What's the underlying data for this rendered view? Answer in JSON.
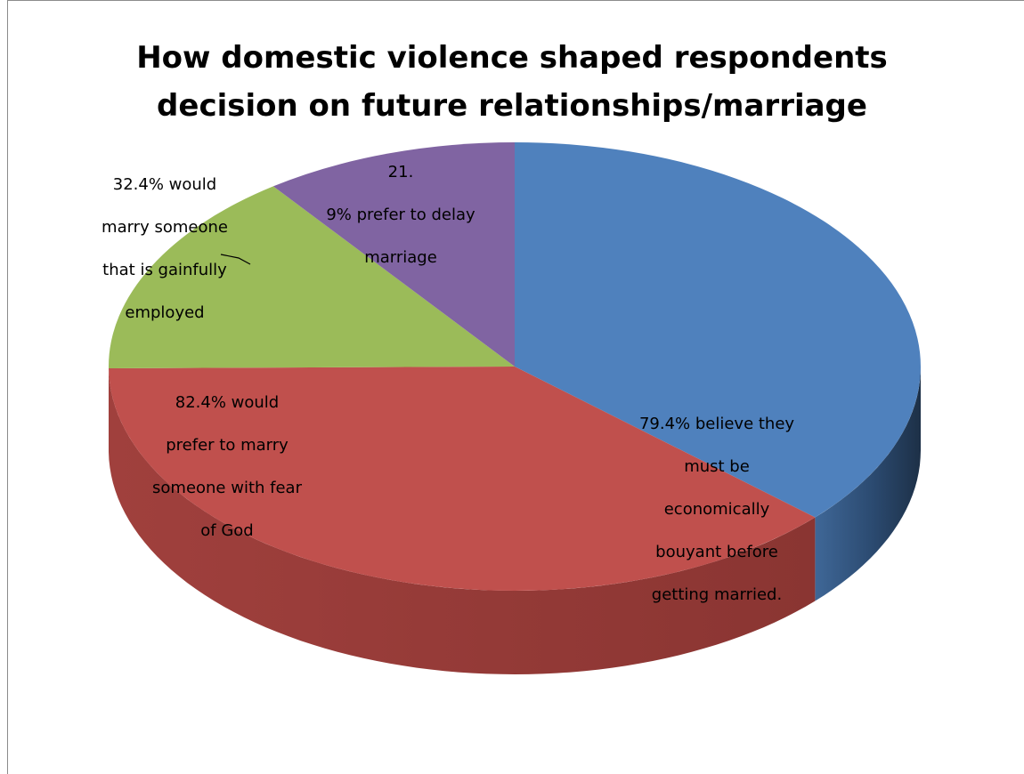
{
  "chart_data": {
    "type": "pie",
    "title": "How domestic violence shaped respondents decision on future relationships/marriage",
    "title_lines": [
      "How domestic violence shaped respondents",
      "decision on future relationships/marriage"
    ],
    "style": "3d",
    "legend": "none",
    "categories": [
      "79.4% believe they must be economically bouyant before getting married.",
      "82.4%  would prefer to  marry someone  with fear of God",
      "32.4%  would marry someone that is gainfully employed",
      "21. 9% prefer to delay marriage"
    ],
    "values": [
      79.4,
      82.4,
      32.4,
      21.9
    ],
    "slices": [
      {
        "label_lines": [
          "79.4% believe they",
          "must be",
          "economically",
          "bouyant before",
          "getting married."
        ],
        "value": 79.4,
        "color": "#4F81BD"
      },
      {
        "label_lines": [
          "82.4%  would",
          "prefer to  marry",
          "someone  with fear",
          "of God"
        ],
        "value": 82.4,
        "color": "#C0504D"
      },
      {
        "label_lines": [
          "32.4%  would",
          "marry someone",
          "that is gainfully",
          "employed"
        ],
        "value": 32.4,
        "color": "#9BBB59"
      },
      {
        "label_lines": [
          "21.",
          "9% prefer to delay",
          "marriage"
        ],
        "value": 21.9,
        "color": "#8064A2"
      }
    ]
  }
}
